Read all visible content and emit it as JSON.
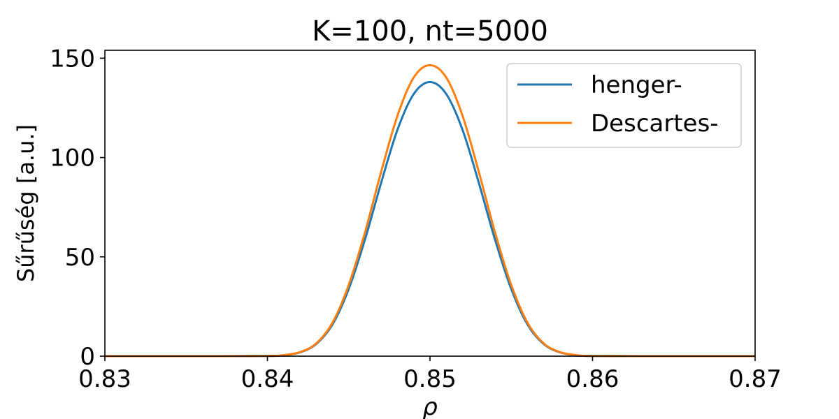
{
  "chart_data": {
    "type": "line",
    "title": "K=100, nt=5000",
    "xlabel": "ρ",
    "ylabel": "Sűrűség [a.u.]",
    "xlim": [
      0.83,
      0.87
    ],
    "ylim": [
      0,
      154
    ],
    "x_ticks": [
      {
        "value": 0.83,
        "label": "0.83"
      },
      {
        "value": 0.84,
        "label": "0.84"
      },
      {
        "value": 0.85,
        "label": "0.85"
      },
      {
        "value": 0.86,
        "label": "0.86"
      },
      {
        "value": 0.87,
        "label": "0.87"
      }
    ],
    "y_ticks": [
      {
        "value": 0,
        "label": "0"
      },
      {
        "value": 50,
        "label": "50"
      },
      {
        "value": 100,
        "label": "100"
      },
      {
        "value": 150,
        "label": "150"
      }
    ],
    "grid": false,
    "legend_position": "top-right",
    "x": [
      0.83,
      0.835,
      0.84,
      0.841,
      0.842,
      0.843,
      0.844,
      0.845,
      0.846,
      0.847,
      0.848,
      0.849,
      0.85,
      0.851,
      0.852,
      0.853,
      0.854,
      0.855,
      0.856,
      0.857,
      0.858,
      0.859,
      0.86,
      0.865,
      0.87
    ],
    "series": [
      {
        "name": "henger-",
        "color": "#1f77b4",
        "values": [
          0,
          0,
          0.1,
          0.5,
          1.9,
          6.1,
          15.9,
          33.8,
          58.7,
          87.4,
          114.0,
          132.0,
          138.0,
          132.0,
          114.0,
          87.4,
          58.7,
          33.8,
          15.9,
          6.1,
          1.9,
          0.5,
          0.1,
          0,
          0
        ]
      },
      {
        "name": "Descartes-",
        "color": "#ff7f0e",
        "values": [
          0,
          0,
          0.1,
          0.5,
          2.0,
          6.4,
          16.8,
          35.8,
          62.3,
          92.9,
          121.1,
          140.3,
          146.5,
          140.3,
          121.1,
          92.9,
          62.3,
          35.8,
          16.8,
          6.4,
          2.0,
          0.5,
          0.1,
          0,
          0
        ]
      }
    ]
  }
}
